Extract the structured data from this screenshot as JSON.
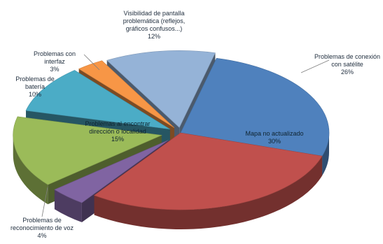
{
  "chart_data": {
    "type": "pie",
    "title": "",
    "legend": "none",
    "slices": [
      {
        "label": "Problemas de conexión con satélite",
        "display": "26%",
        "value": 26,
        "color": "#4f81bd"
      },
      {
        "label": "Mapa no actualizado",
        "display": "30%",
        "value": 30,
        "color": "#c0504d"
      },
      {
        "label": "Problemas de reconocimiento de voz",
        "display": "4%",
        "value": 4,
        "color": "#8064a2"
      },
      {
        "label": "Problemas al encontrar dirección o localidad",
        "display": "15%",
        "value": 15,
        "color": "#9bbb59"
      },
      {
        "label": "Problemas de batería",
        "display": "10%",
        "value": 10,
        "color": "#4bacc6"
      },
      {
        "label": "Problemas con interfaz",
        "display": "3%",
        "value": 3,
        "color": "#f79646"
      },
      {
        "label": "Visibilidad de pantalla problemática (reflejos, gráficos confusos...)",
        "display": "12%",
        "value": 12,
        "color": "#95b3d7"
      }
    ]
  }
}
